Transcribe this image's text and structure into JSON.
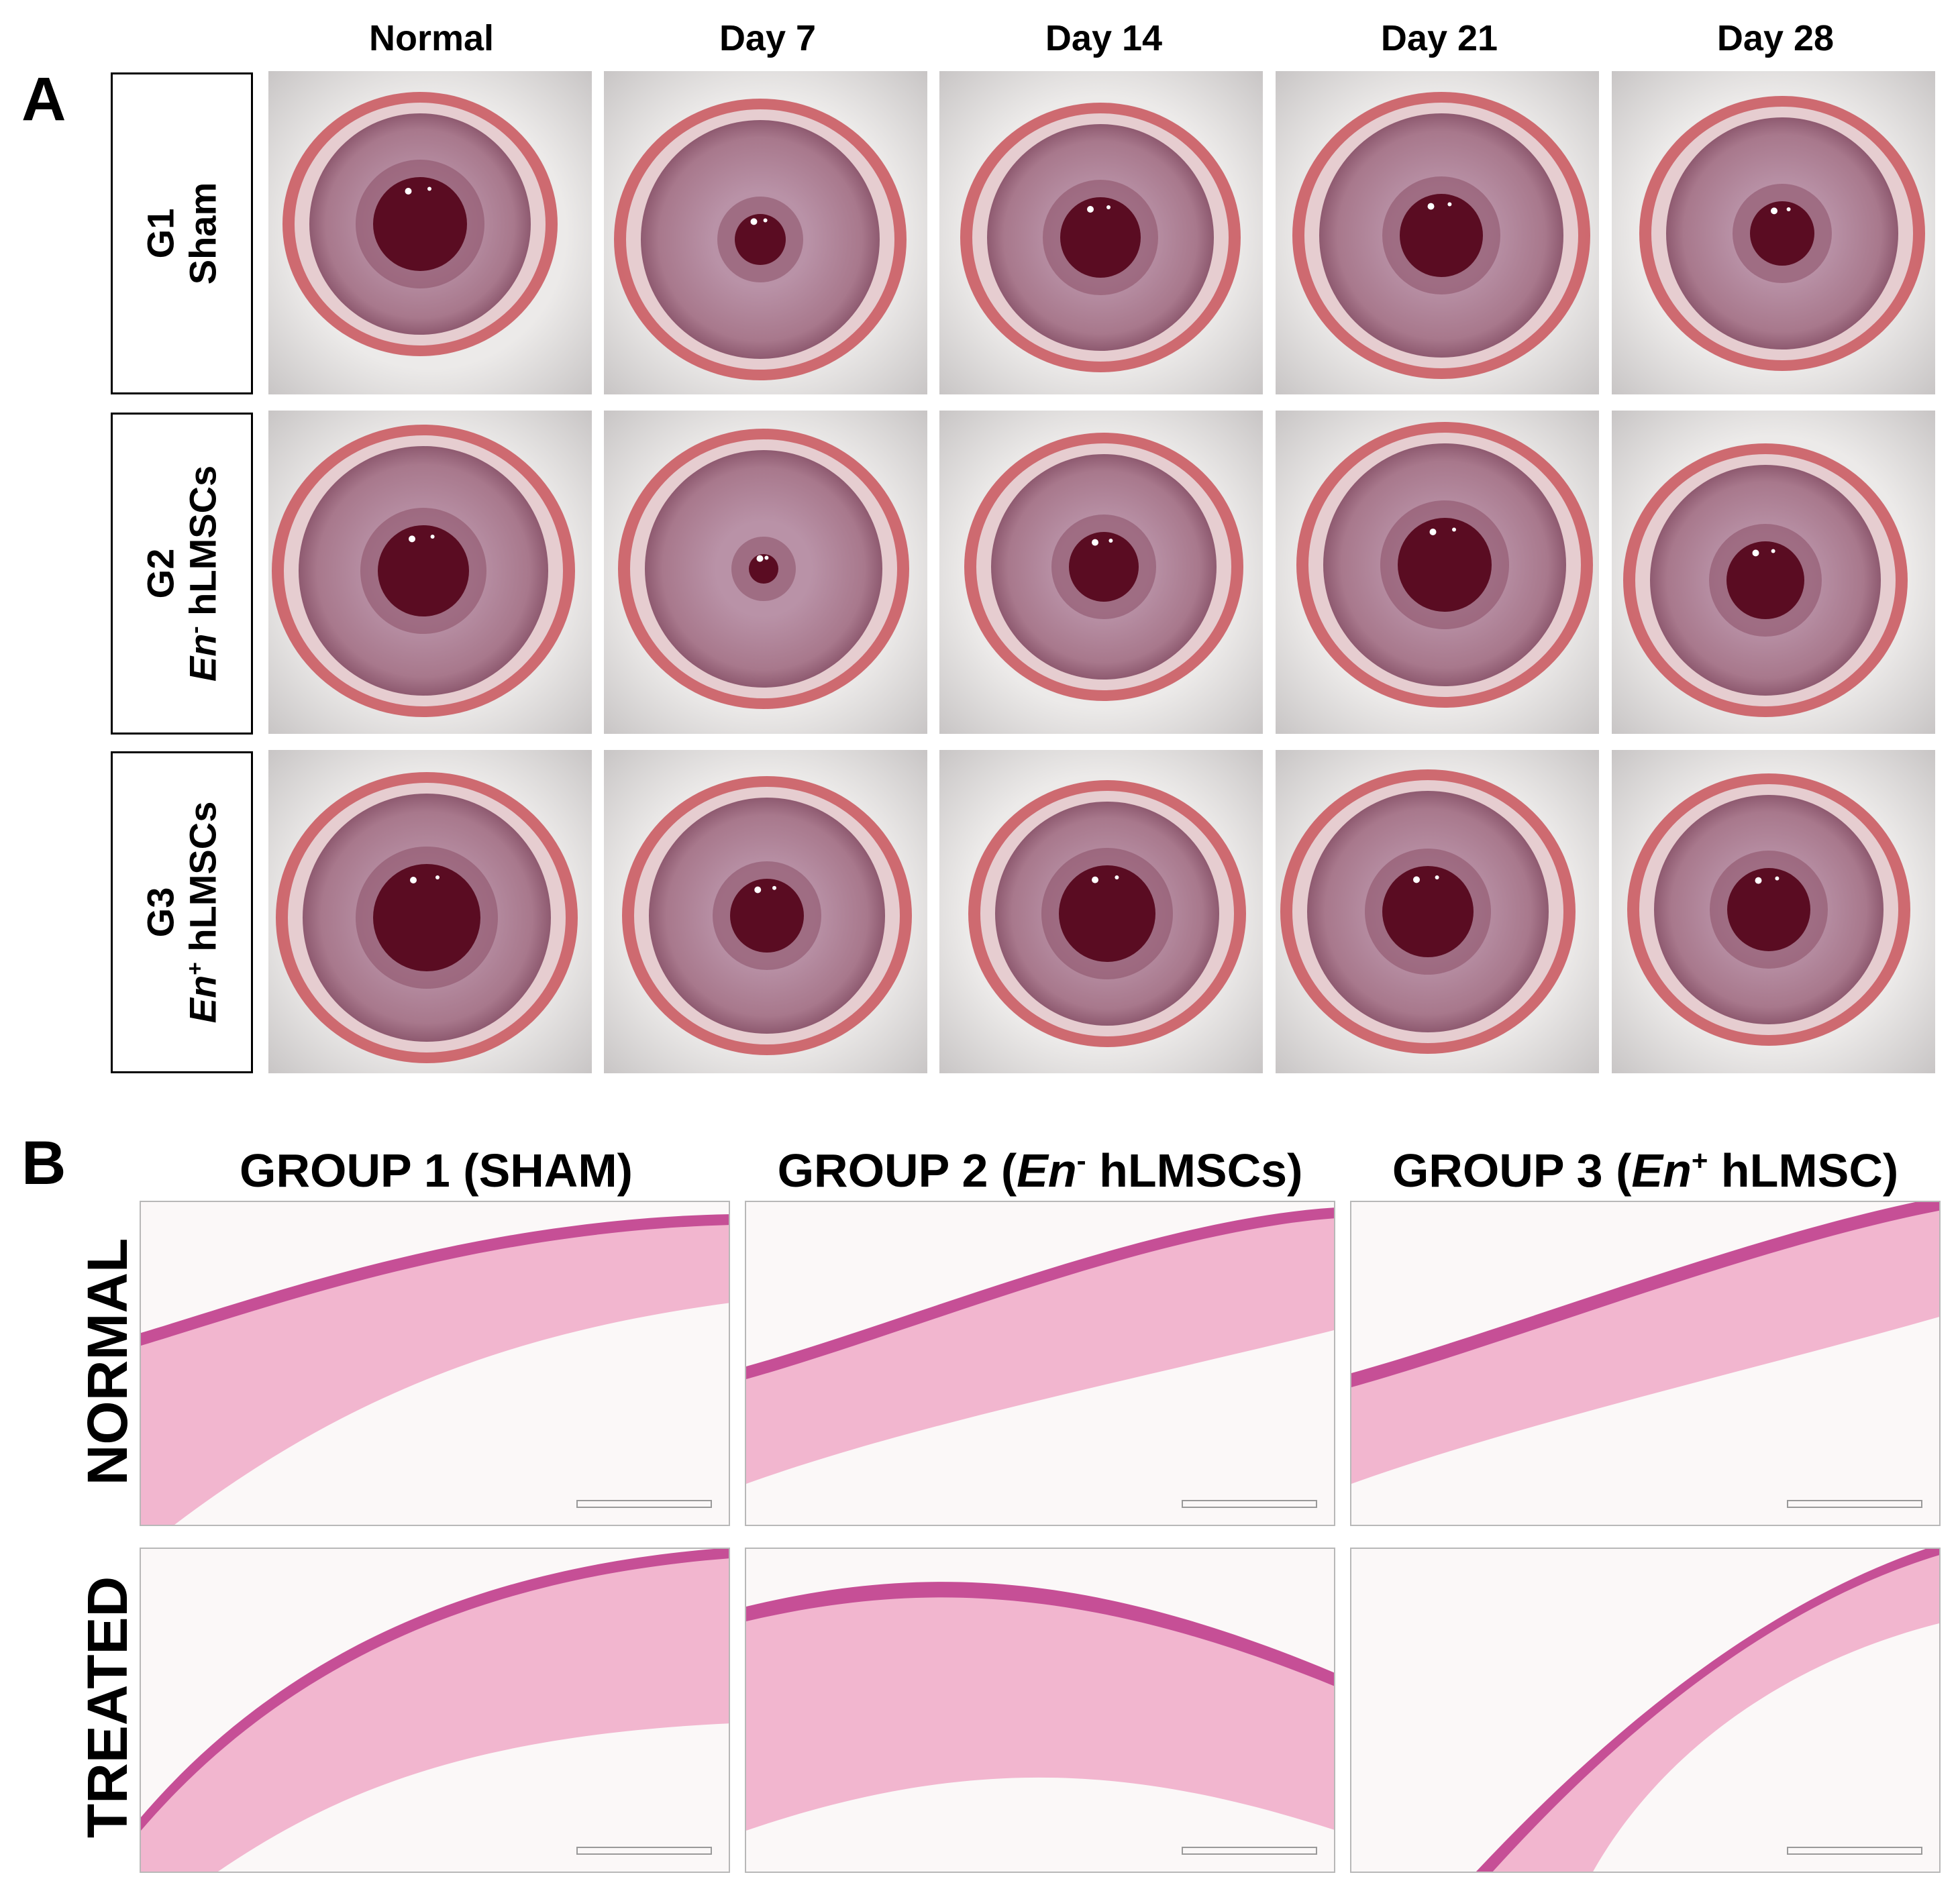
{
  "panel_a": {
    "letter": "A",
    "columns": [
      "Normal",
      "Day 7",
      "Day 14",
      "Day 21",
      "Day 28"
    ],
    "rows": [
      {
        "line1": "G1",
        "line2_italic": "",
        "line2_sup": "",
        "line2_rest": "Sham"
      },
      {
        "line1": "G2",
        "line2_italic": "En",
        "line2_sup": "-",
        "line2_rest": " hLMSCs"
      },
      {
        "line1": "G3",
        "line2_italic": "En",
        "line2_sup": "+",
        "line2_rest": " hLMSCs"
      }
    ]
  },
  "panel_b": {
    "letter": "B",
    "headers": [
      {
        "pre": "GROUP 1 (SHAM)",
        "italic": "",
        "sup": "",
        "post": ""
      },
      {
        "pre": "GROUP 2 (",
        "italic": "En",
        "sup": "-",
        "post": " hLMSCs)"
      },
      {
        "pre": "GROUP 3 (",
        "italic": "En",
        "sup": "+",
        "post": " hLMSC)"
      }
    ],
    "rows": [
      "NORMAL",
      "TREATED"
    ]
  },
  "colors": {
    "iris": "#a8788c",
    "pupil": "#5a0c22",
    "lid": "#c9545a",
    "fur": "#eceae9",
    "tissue": "#f2b6cf",
    "epithelium": "#c64f96",
    "histo_bg": "#fbf8f8"
  },
  "icons": {
    "eye_photo": "eye-photo-icon",
    "histology": "histology-section-icon"
  }
}
